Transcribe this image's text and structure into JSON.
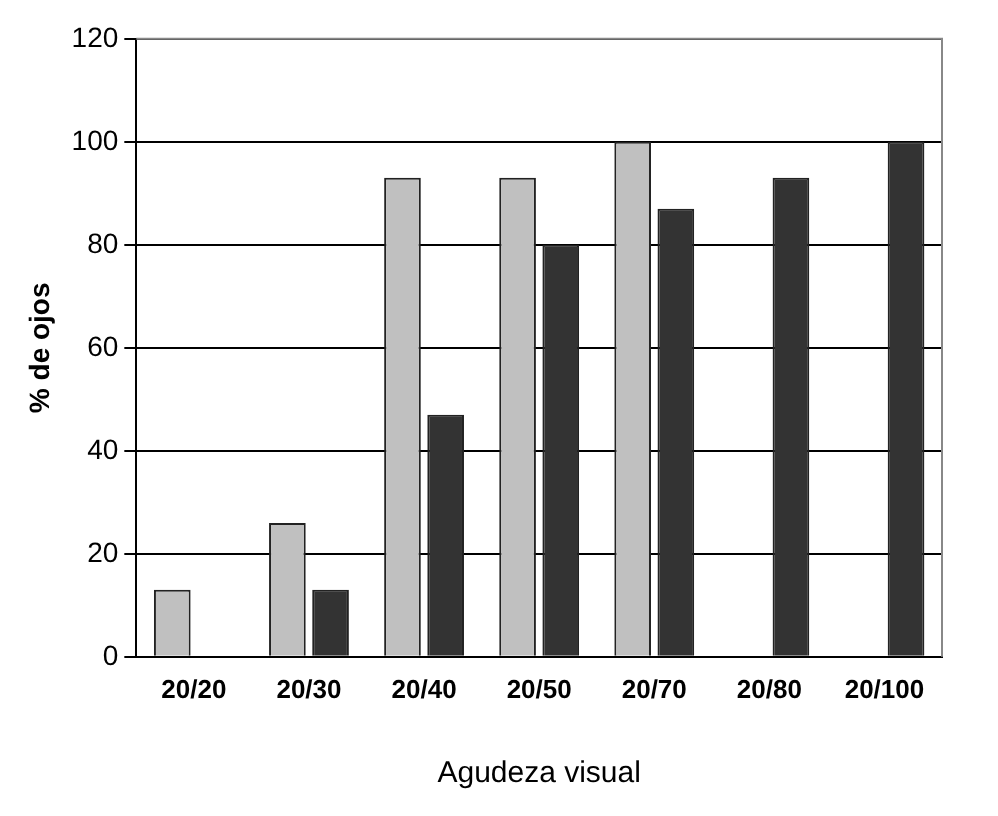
{
  "chart_data": {
    "type": "bar",
    "xlabel": "Agudeza visual",
    "ylabel": "% de ojos",
    "categories": [
      "20/20",
      "20/30",
      "20/40",
      "20/50",
      "20/70",
      "20/80",
      "20/100"
    ],
    "series": [
      {
        "color": "#c0c0c0",
        "values": [
          13,
          26,
          93,
          93,
          100,
          null,
          null
        ]
      },
      {
        "color": "#333333",
        "values": [
          null,
          13,
          47,
          80,
          87,
          93,
          100
        ]
      }
    ],
    "ylim": [
      0,
      120
    ],
    "yticks": [
      0,
      20,
      40,
      60,
      80,
      100,
      120
    ],
    "grid": "y",
    "legend": false
  }
}
